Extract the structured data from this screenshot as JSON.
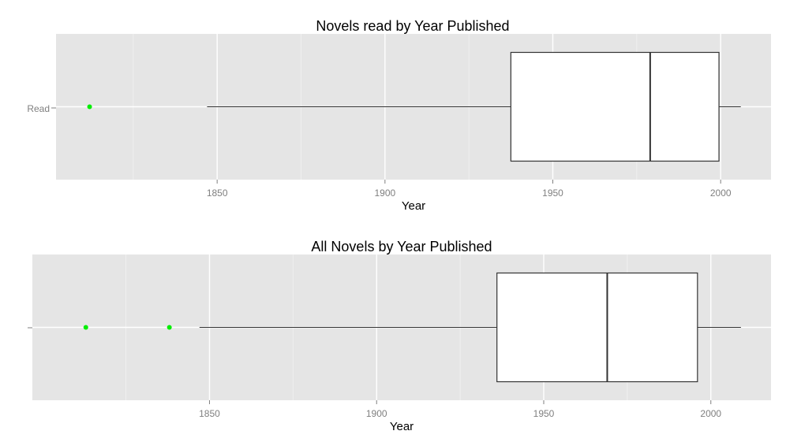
{
  "chart_data": [
    {
      "type": "boxplot",
      "orientation": "horizontal",
      "title": "Novels read by Year Published",
      "xlabel": "Year",
      "ylabel": "",
      "y_category": "Read",
      "xlim": [
        1802,
        2015
      ],
      "x_ticks": [
        1850,
        1900,
        1950,
        2000
      ],
      "grid": true,
      "box": {
        "whisker_low": 1847,
        "q1": 1937.5,
        "median": 1979,
        "q3": 1999.5,
        "whisker_high": 2006
      },
      "outliers": [
        1812
      ],
      "colors": {
        "panel": "#e5e5e5",
        "grid": "#ffffff",
        "box_fill": "#ffffff",
        "box_line": "#333333",
        "outlier": "#00ee00"
      }
    },
    {
      "type": "boxplot",
      "orientation": "horizontal",
      "title": "All Novels by Year Published",
      "xlabel": "Year",
      "ylabel": "",
      "y_category": "",
      "xlim": [
        1797,
        2018
      ],
      "x_ticks": [
        1850,
        1900,
        1950,
        2000
      ],
      "grid": true,
      "box": {
        "whisker_low": 1847,
        "q1": 1936,
        "median": 1969,
        "q3": 1996,
        "whisker_high": 2009
      },
      "outliers": [
        1813,
        1838
      ],
      "colors": {
        "panel": "#e5e5e5",
        "grid": "#ffffff",
        "box_fill": "#ffffff",
        "box_line": "#333333",
        "outlier": "#00ee00"
      }
    }
  ]
}
